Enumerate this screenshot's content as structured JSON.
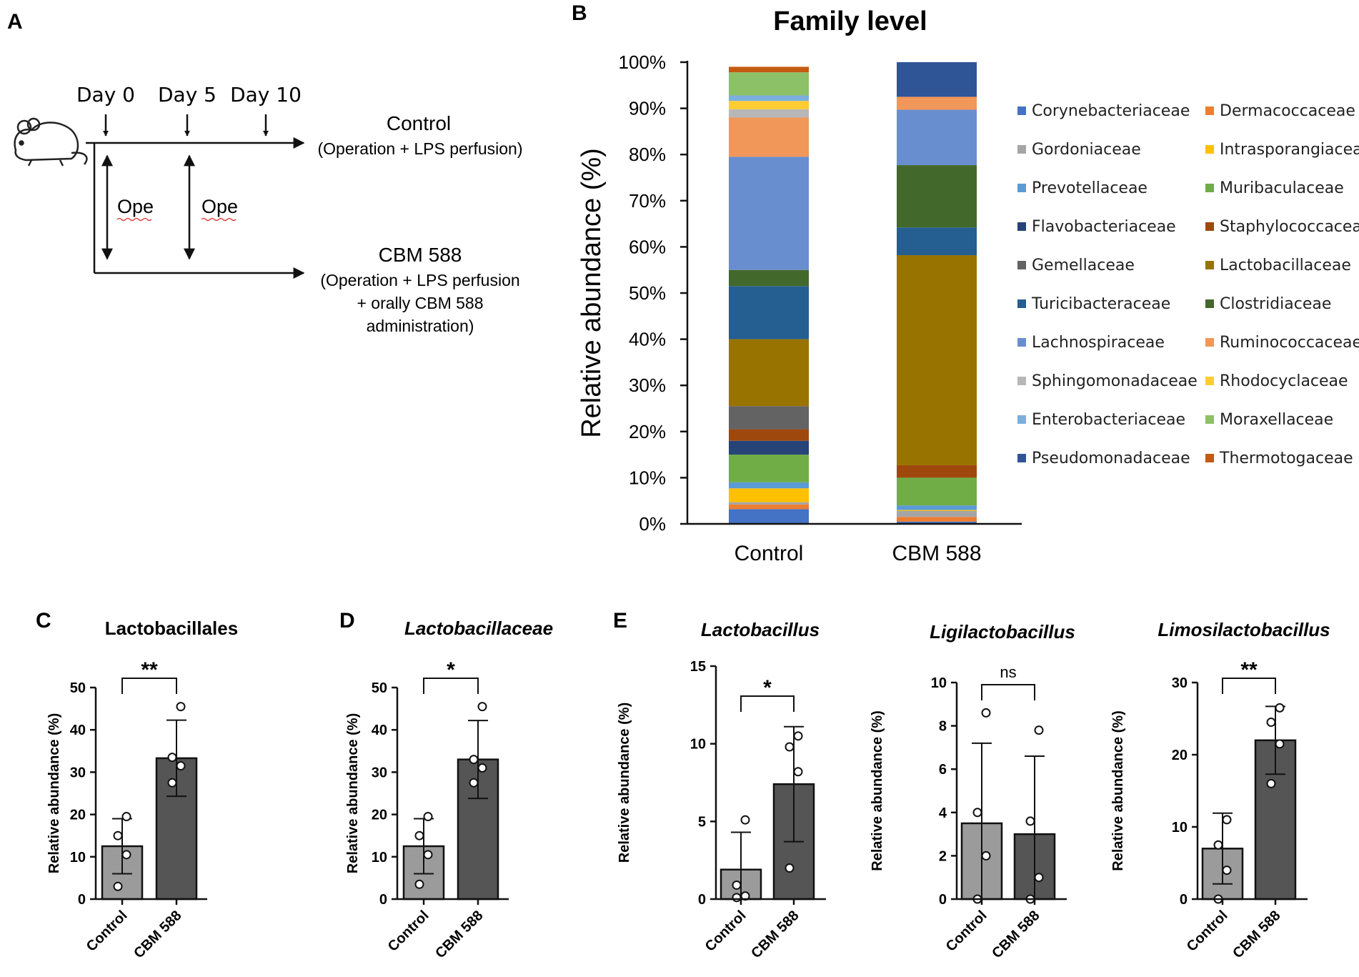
{
  "panel_a": {
    "label": "A",
    "days": [
      "Day 0",
      "Day 5",
      "Day 10"
    ],
    "groups": [
      {
        "title": "Control",
        "lines": [
          "(Operation + LPS perfusion)"
        ]
      },
      {
        "title": "CBM 588",
        "lines": [
          "(Operation + LPS perfusion",
          "+ orally CBM 588",
          "administration)"
        ]
      }
    ],
    "ope_labels": [
      "Ope",
      "Ope"
    ]
  },
  "chart_data": [
    {
      "id": "B",
      "panel_label": "B",
      "type": "bar",
      "stacked": true,
      "title": "Family level",
      "xlabel": "",
      "ylabel": "Relative abundance (%)",
      "ylim": [
        0,
        100
      ],
      "yticks": [
        "0%",
        "10%",
        "20%",
        "30%",
        "40%",
        "50%",
        "60%",
        "70%",
        "80%",
        "90%",
        "100%"
      ],
      "categories": [
        "Control",
        "CBM 588"
      ],
      "legend_position": "right",
      "series": [
        {
          "name": "Corynebacteriaceae",
          "color": "#4472c4",
          "values": [
            3.2,
            0.5
          ]
        },
        {
          "name": "Dermacoccaceae",
          "color": "#ed7d31",
          "values": [
            1.0,
            1.0
          ]
        },
        {
          "name": "Gordoniaceae",
          "color": "#a5a5a5",
          "values": [
            0.5,
            1.3
          ]
        },
        {
          "name": "Intrasporangiaceae",
          "color": "#ffc000",
          "values": [
            3.0,
            0.2
          ]
        },
        {
          "name": "Prevotellaceae",
          "color": "#5b9bd5",
          "values": [
            1.3,
            1.0
          ]
        },
        {
          "name": "Muribaculaceae",
          "color": "#70ad47",
          "values": [
            6.0,
            6.0
          ]
        },
        {
          "name": "Flavobacteriaceae",
          "color": "#264478",
          "values": [
            3.0,
            0.0
          ]
        },
        {
          "name": "Staphylococcaceae",
          "color": "#9e480e",
          "values": [
            2.5,
            2.7
          ]
        },
        {
          "name": "Gemellaceae",
          "color": "#636363",
          "values": [
            5.0,
            0.0
          ]
        },
        {
          "name": "Lactobacillaceae",
          "color": "#997300",
          "values": [
            14.5,
            45.5
          ]
        },
        {
          "name": "Turicibacteraceae",
          "color": "#255e91",
          "values": [
            11.5,
            6.0
          ]
        },
        {
          "name": "Clostridiaceae",
          "color": "#43682b",
          "values": [
            3.5,
            13.5
          ]
        },
        {
          "name": "Lachnospiraceae",
          "color": "#698ed0",
          "values": [
            24.5,
            12.0
          ]
        },
        {
          "name": "Ruminococcaceae",
          "color": "#f1975a",
          "values": [
            8.5,
            2.8
          ]
        },
        {
          "name": "Sphingomonadaceae",
          "color": "#b7b7b7",
          "values": [
            1.8,
            0.0
          ]
        },
        {
          "name": "Rhodocyclaceae",
          "color": "#ffcd33",
          "values": [
            1.8,
            0.0
          ]
        },
        {
          "name": "Enterobacteriaceae",
          "color": "#7cafdd",
          "values": [
            1.2,
            0.0
          ]
        },
        {
          "name": "Moraxellaceae",
          "color": "#8cc168",
          "values": [
            5.0,
            0.0
          ]
        },
        {
          "name": "Pseudomonadaceae",
          "color": "#2f5597",
          "values": [
            0.0,
            7.5
          ]
        },
        {
          "name": "Thermotogaceae",
          "color": "#c55a11",
          "values": [
            1.2,
            0.0
          ]
        }
      ]
    },
    {
      "id": "C",
      "panel_label": "C",
      "type": "bar",
      "title": "Lactobacillales",
      "italic": false,
      "xlabel": "",
      "ylabel": "Relative abundance (%)",
      "ylim": [
        0,
        50
      ],
      "yticks": [
        "0",
        "10",
        "20",
        "30",
        "40",
        "50"
      ],
      "categories": [
        "Control",
        "CBM 588"
      ],
      "values": [
        12.5,
        33.3
      ],
      "errors": [
        6.5,
        9.0
      ],
      "points": [
        [
          3,
          10.5,
          15,
          19.5
        ],
        [
          27.5,
          31.5,
          33.5,
          45.5
        ]
      ],
      "significance": "**",
      "bar_colors": [
        "#9b9b9b",
        "#555555"
      ]
    },
    {
      "id": "D",
      "panel_label": "D",
      "type": "bar",
      "title": "Lactobacillaceae",
      "italic": true,
      "xlabel": "",
      "ylabel": "Relative abundance (%)",
      "ylim": [
        0,
        50
      ],
      "yticks": [
        "0",
        "10",
        "20",
        "30",
        "40",
        "50"
      ],
      "categories": [
        "Control",
        "CBM 588"
      ],
      "values": [
        12.5,
        33.0
      ],
      "errors": [
        6.5,
        9.2
      ],
      "points": [
        [
          3.5,
          10.5,
          15,
          19.5
        ],
        [
          27.5,
          31,
          33,
          45.5
        ]
      ],
      "significance": "*",
      "bar_colors": [
        "#9b9b9b",
        "#555555"
      ]
    },
    {
      "id": "E1",
      "panel_label": "E",
      "type": "bar",
      "title": "Lactobacillus",
      "italic": true,
      "xlabel": "",
      "ylabel": "Relative abundance (%)",
      "ylim": [
        0,
        15
      ],
      "yticks": [
        "0",
        "5",
        "10",
        "15"
      ],
      "categories": [
        "Control",
        "CBM 588"
      ],
      "values": [
        1.9,
        7.4
      ],
      "errors": [
        2.4,
        3.7
      ],
      "points": [
        [
          0.1,
          0.2,
          0.9,
          5.1
        ],
        [
          2.0,
          8.2,
          9.8,
          10.5
        ]
      ],
      "significance": "*",
      "bar_colors": [
        "#9b9b9b",
        "#555555"
      ]
    },
    {
      "id": "E2",
      "panel_label": "",
      "type": "bar",
      "title": "Ligilactobacillus",
      "italic": true,
      "xlabel": "",
      "ylabel": "Relative abundance (%)",
      "ylim": [
        0,
        10
      ],
      "yticks": [
        "0",
        "2",
        "4",
        "6",
        "8",
        "10"
      ],
      "categories": [
        "Control",
        "CBM 588"
      ],
      "values": [
        3.5,
        3.0
      ],
      "errors": [
        3.7,
        3.6
      ],
      "points": [
        [
          0.0,
          2.0,
          4.0,
          8.6
        ],
        [
          0.0,
          1.0,
          3.6,
          7.8
        ]
      ],
      "significance": "ns",
      "bar_colors": [
        "#9b9b9b",
        "#555555"
      ]
    },
    {
      "id": "E3",
      "panel_label": "",
      "type": "bar",
      "title": "Limosilactobacillus",
      "italic": true,
      "xlabel": "",
      "ylabel": "Relative abundance (%)",
      "ylim": [
        0,
        30
      ],
      "yticks": [
        "0",
        "10",
        "20",
        "30"
      ],
      "categories": [
        "Control",
        "CBM 588"
      ],
      "values": [
        7.0,
        22.0
      ],
      "errors": [
        4.9,
        4.7
      ],
      "points": [
        [
          0.0,
          4.0,
          7.5,
          11.0
        ],
        [
          16.0,
          21.5,
          24.5,
          26.5
        ]
      ],
      "significance": "**",
      "bar_colors": [
        "#9b9b9b",
        "#555555"
      ]
    }
  ]
}
